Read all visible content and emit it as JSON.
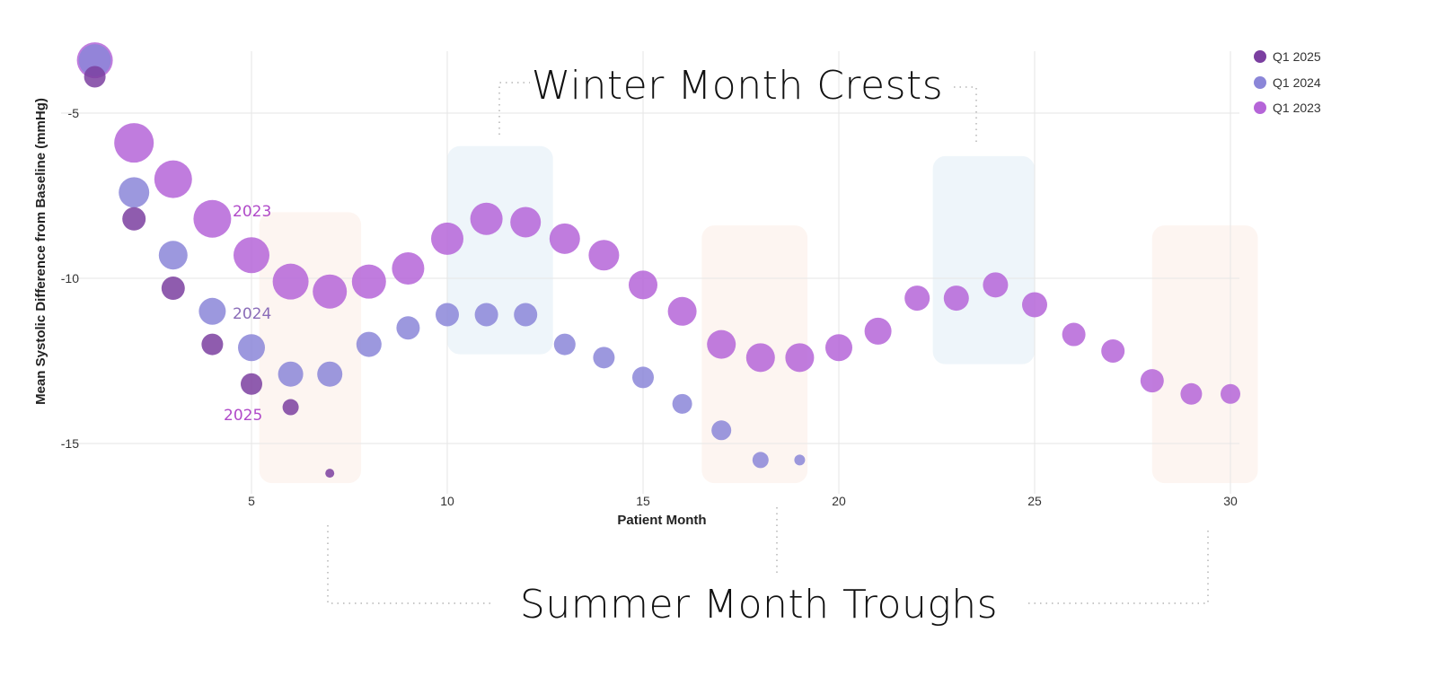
{
  "chart_data": {
    "type": "scatter",
    "xlabel": "Patient Month",
    "ylabel": "Mean Systolic Difference from Baseline (mmHg)",
    "xlim": [
      0,
      31
    ],
    "ylim": [
      -16.8,
      -2.2
    ],
    "x_ticks": [
      5,
      10,
      15,
      20,
      25,
      30
    ],
    "y_ticks": [
      -5,
      -10,
      -15
    ],
    "grid": true,
    "legend_position": "top-right",
    "series": [
      {
        "name": "Q1 2025",
        "label": "2025",
        "color": "#7b3fa0",
        "x": [
          1,
          2,
          3,
          4,
          5,
          6,
          7
        ],
        "y": [
          -3.9,
          -8.2,
          -10.3,
          -12.0,
          -13.2,
          -13.9,
          -15.9
        ]
      },
      {
        "name": "Q1 2024",
        "label": "2024",
        "color": "#8b86d8",
        "x": [
          1,
          2,
          3,
          4,
          5,
          6,
          7,
          8,
          9,
          10,
          11,
          12,
          13,
          14,
          15,
          16,
          17,
          18,
          19
        ],
        "y": [
          -3.4,
          -7.4,
          -9.3,
          -11.0,
          -12.1,
          -12.9,
          -12.9,
          -12.0,
          -11.5,
          -11.1,
          -11.1,
          -11.1,
          -12.0,
          -12.4,
          -13.0,
          -13.8,
          -14.6,
          -15.5,
          -15.5
        ]
      },
      {
        "name": "Q1 2023",
        "label": "2023",
        "color": "#b565d8",
        "x": [
          1,
          2,
          3,
          4,
          5,
          6,
          7,
          8,
          9,
          10,
          11,
          12,
          13,
          14,
          15,
          16,
          17,
          18,
          19,
          20,
          21,
          22,
          23,
          24,
          25,
          26,
          27,
          28,
          29,
          30
        ],
        "y": [
          -3.4,
          -5.9,
          -7.0,
          -8.2,
          -9.3,
          -10.1,
          -10.4,
          -10.1,
          -9.7,
          -8.8,
          -8.2,
          -8.3,
          -8.8,
          -9.3,
          -10.2,
          -11.0,
          -12.0,
          -12.4,
          -12.4,
          -12.1,
          -11.6,
          -10.6,
          -10.6,
          -10.2,
          -10.8,
          -11.7,
          -12.2,
          -13.1,
          -13.5,
          -13.5
        ]
      }
    ],
    "annotations": {
      "winter": {
        "text": "Winter Month Crests",
        "color": "#eef5fa",
        "ranges": [
          [
            10,
            12.7
          ],
          [
            22.4,
            25
          ]
        ]
      },
      "summer": {
        "text": "Summer Month Troughs",
        "color": "#fdf5f1",
        "ranges": [
          [
            5.2,
            7.8
          ],
          [
            16.5,
            19.2
          ],
          [
            28,
            30.7
          ]
        ]
      }
    }
  }
}
